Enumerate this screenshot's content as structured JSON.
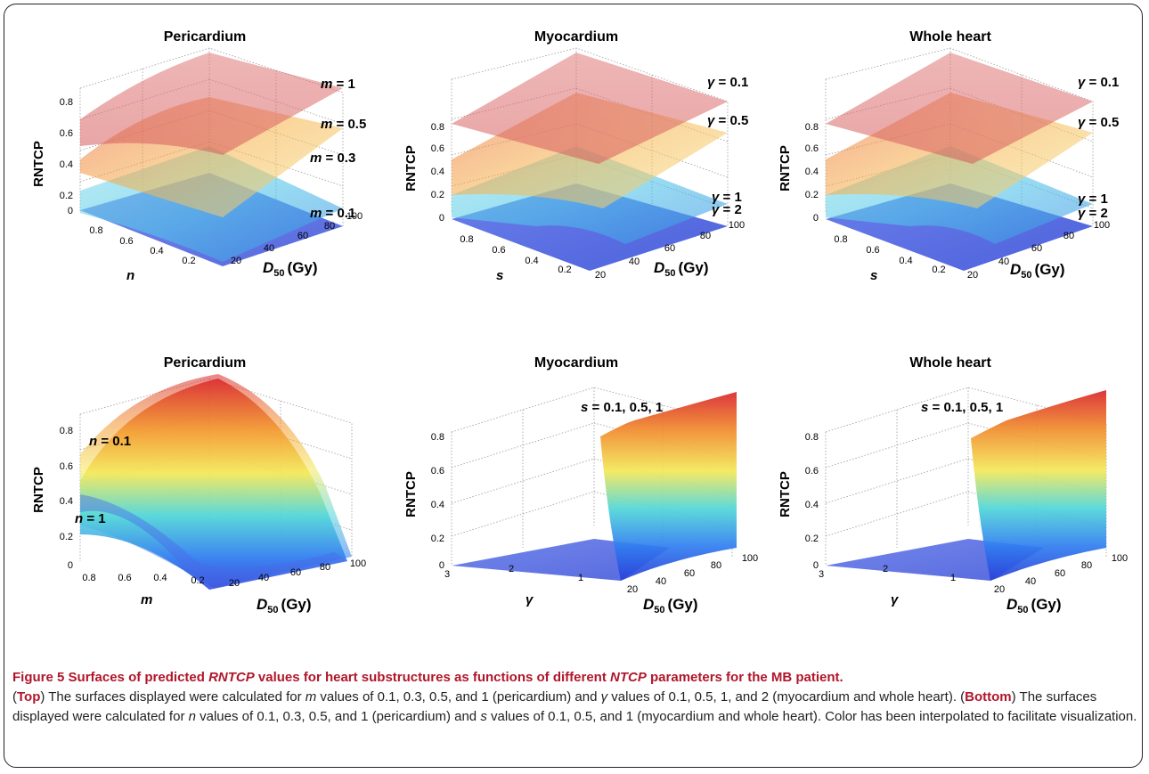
{
  "caption": {
    "figure_label": "Figure 5",
    "title_a": "Surfaces of predicted ",
    "title_b": "RNTCP",
    "title_c": " values for heart substructures as functions of different ",
    "title_d": "NTCP",
    "title_e": " parameters for the MB patient.",
    "p1_open": "(",
    "p1_bold": "Top",
    "p1_a": ") The surfaces displayed were calculated for ",
    "p1_m": "m",
    "p1_b": " values of 0.1, 0.3, 0.5, and 1 (pericardium) and ",
    "p1_g": "γ",
    "p1_c": " values of 0.1, 0.5, 1, and 2 (myocardium and whole heart). (",
    "p2_bold": "Bottom",
    "p2_a": ") The surfaces displayed were calculated for ",
    "p2_n": "n",
    "p2_b": " values of 0.1, 0.3, 0.5, and 1 (pericardium) and ",
    "p2_s": "s",
    "p2_c": " values of 0.1, 0.5, and 1 (myocardium and whole heart). Color has been interpolated to facilitate visualization."
  },
  "colors": {
    "red": "#d62a2a",
    "orange": "#f08a2c",
    "yellow": "#f5e15a",
    "cyan": "#5fd0e8",
    "blue": "#2f4fe0",
    "grid": "#9a9a9a"
  },
  "chart_data": [
    {
      "type": "surface",
      "title": "Pericardium",
      "zlabel": "RNTCP",
      "xlabel": "n",
      "ylabel_main": "D",
      "ylabel_sub": "50",
      "ylabel_unit": "(Gy)",
      "z_ticks": [
        "0",
        "0.2",
        "0.4",
        "0.6",
        "0.8"
      ],
      "x_ticks": [
        "0.8",
        "0.6",
        "0.4",
        "0.2"
      ],
      "y_ticks": [
        "20",
        "40",
        "60",
        "80",
        "100"
      ],
      "zlim": [
        0,
        0.9
      ],
      "surface_labels": [
        {
          "param": "m",
          "value": "1"
        },
        {
          "param": "m",
          "value": "0.5"
        },
        {
          "param": "m",
          "value": "0.3"
        },
        {
          "param": "m",
          "value": "0.1"
        }
      ]
    },
    {
      "type": "surface",
      "title": "Myocardium",
      "zlabel": "RNTCP",
      "xlabel": "s",
      "ylabel_main": "D",
      "ylabel_sub": "50",
      "ylabel_unit": "(Gy)",
      "z_ticks": [
        "0",
        "0.2",
        "0.4",
        "0.6",
        "0.8"
      ],
      "x_ticks": [
        "0.8",
        "0.6",
        "0.4",
        "0.2"
      ],
      "y_ticks": [
        "20",
        "40",
        "60",
        "80",
        "100"
      ],
      "zlim": [
        0,
        0.9
      ],
      "surface_labels": [
        {
          "param": "γ",
          "value": "0.1"
        },
        {
          "param": "γ",
          "value": "0.5"
        },
        {
          "param": "γ",
          "value": "1"
        },
        {
          "param": "γ",
          "value": "2"
        }
      ]
    },
    {
      "type": "surface",
      "title": "Whole heart",
      "zlabel": "RNTCP",
      "xlabel": "s",
      "ylabel_main": "D",
      "ylabel_sub": "50",
      "ylabel_unit": "(Gy)",
      "z_ticks": [
        "0",
        "0.2",
        "0.4",
        "0.6",
        "0.8"
      ],
      "x_ticks": [
        "0.8",
        "0.6",
        "0.4",
        "0.2"
      ],
      "y_ticks": [
        "20",
        "40",
        "60",
        "80",
        "100"
      ],
      "zlim": [
        0,
        0.9
      ],
      "surface_labels": [
        {
          "param": "γ",
          "value": "0.1"
        },
        {
          "param": "γ",
          "value": "0.5"
        },
        {
          "param": "γ",
          "value": "1"
        },
        {
          "param": "γ",
          "value": "2"
        }
      ]
    },
    {
      "type": "surface",
      "title": "Pericardium",
      "zlabel": "RNTCP",
      "xlabel": "m",
      "ylabel_main": "D",
      "ylabel_sub": "50",
      "ylabel_unit": "(Gy)",
      "z_ticks": [
        "0",
        "0.2",
        "0.4",
        "0.6",
        "0.8"
      ],
      "x_ticks": [
        "0.8",
        "0.6",
        "0.4",
        "0.2"
      ],
      "y_ticks": [
        "20",
        "40",
        "60",
        "80",
        "100"
      ],
      "zlim": [
        0,
        0.9
      ],
      "surface_labels": [
        {
          "param": "n",
          "value": "0.1"
        },
        {
          "param": "n",
          "value": "1"
        }
      ]
    },
    {
      "type": "surface",
      "title": "Myocardium",
      "zlabel": "RNTCP",
      "xlabel": "γ",
      "ylabel_main": "D",
      "ylabel_sub": "50",
      "ylabel_unit": "(Gy)",
      "z_ticks": [
        "0",
        "0.2",
        "0.4",
        "0.6",
        "0.8"
      ],
      "x_ticks": [
        "3",
        "2",
        "1"
      ],
      "y_ticks": [
        "20",
        "40",
        "60",
        "80",
        "100"
      ],
      "zlim": [
        0,
        1
      ],
      "surface_labels": [
        {
          "param": "s",
          "value": "0.1, 0.5, 1"
        }
      ]
    },
    {
      "type": "surface",
      "title": "Whole heart",
      "zlabel": "RNTCP",
      "xlabel": "γ",
      "ylabel_main": "D",
      "ylabel_sub": "50",
      "ylabel_unit": "(Gy)",
      "z_ticks": [
        "0",
        "0.2",
        "0.4",
        "0.6",
        "0.8"
      ],
      "x_ticks": [
        "3",
        "2",
        "1"
      ],
      "y_ticks": [
        "20",
        "40",
        "60",
        "80",
        "100"
      ],
      "zlim": [
        0,
        1
      ],
      "surface_labels": [
        {
          "param": "s",
          "value": "0.1, 0.5, 1"
        }
      ]
    }
  ]
}
